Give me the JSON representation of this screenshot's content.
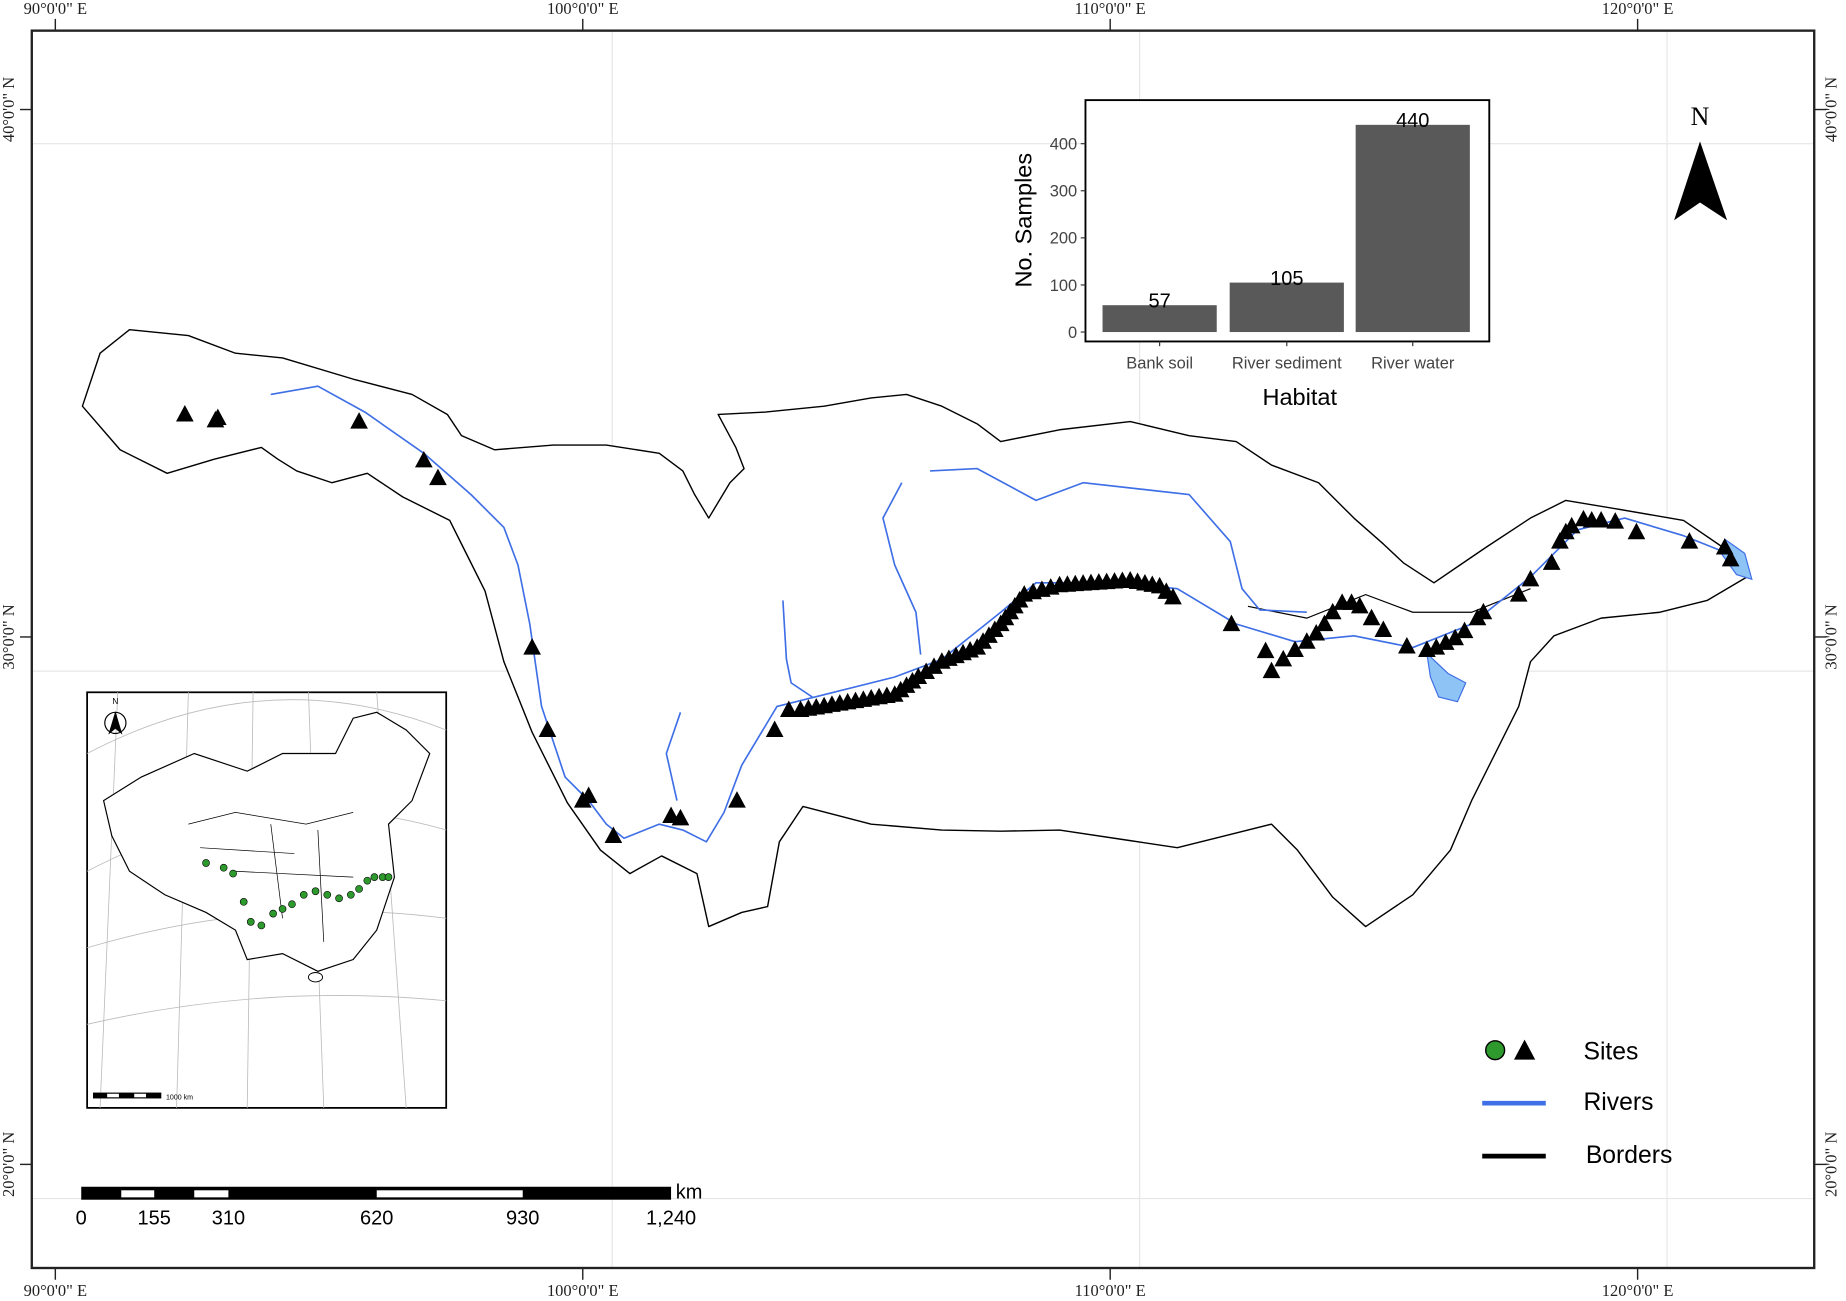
{
  "axes": {
    "lon_labels": [
      "90°0'0\" E",
      "100°0'0\" E",
      "110°0'0\" E",
      "120°0'0\" E"
    ],
    "lat_labels": [
      "40°0'0\" N",
      "30°0'0\" N",
      "20°0'0\" N"
    ]
  },
  "north_arrow": {
    "label": "N"
  },
  "inset_map": {
    "north_label": "N",
    "scale_label": "1000 km"
  },
  "scale_bar": {
    "unit": "km",
    "ticks": [
      "0",
      "155",
      "310",
      "620",
      "930",
      "1,240"
    ]
  },
  "legend": {
    "items": [
      {
        "label": "Sites",
        "symbol": "circle-and-triangle",
        "color": "#2e9a2e"
      },
      {
        "label": "Rivers",
        "symbol": "line",
        "color": "#3f6fe6"
      },
      {
        "label": "Borders",
        "symbol": "line",
        "color": "#000000"
      }
    ]
  },
  "colors": {
    "river": "#3f6fe6",
    "lake": "#8ec3f5",
    "bar": "#595959",
    "site_inset": "#2e9a2e"
  },
  "chart_data": {
    "type": "bar",
    "categories": [
      "Bank soil",
      "River sediment",
      "River water"
    ],
    "values": [
      57,
      105,
      440
    ],
    "data_labels": [
      "57",
      "105",
      "440"
    ],
    "xlabel": "Habitat",
    "ylabel": "No. Samples",
    "ylim": [
      0,
      480
    ],
    "yticks": [
      "0",
      "100",
      "200",
      "300",
      "400"
    ],
    "grid": false
  }
}
